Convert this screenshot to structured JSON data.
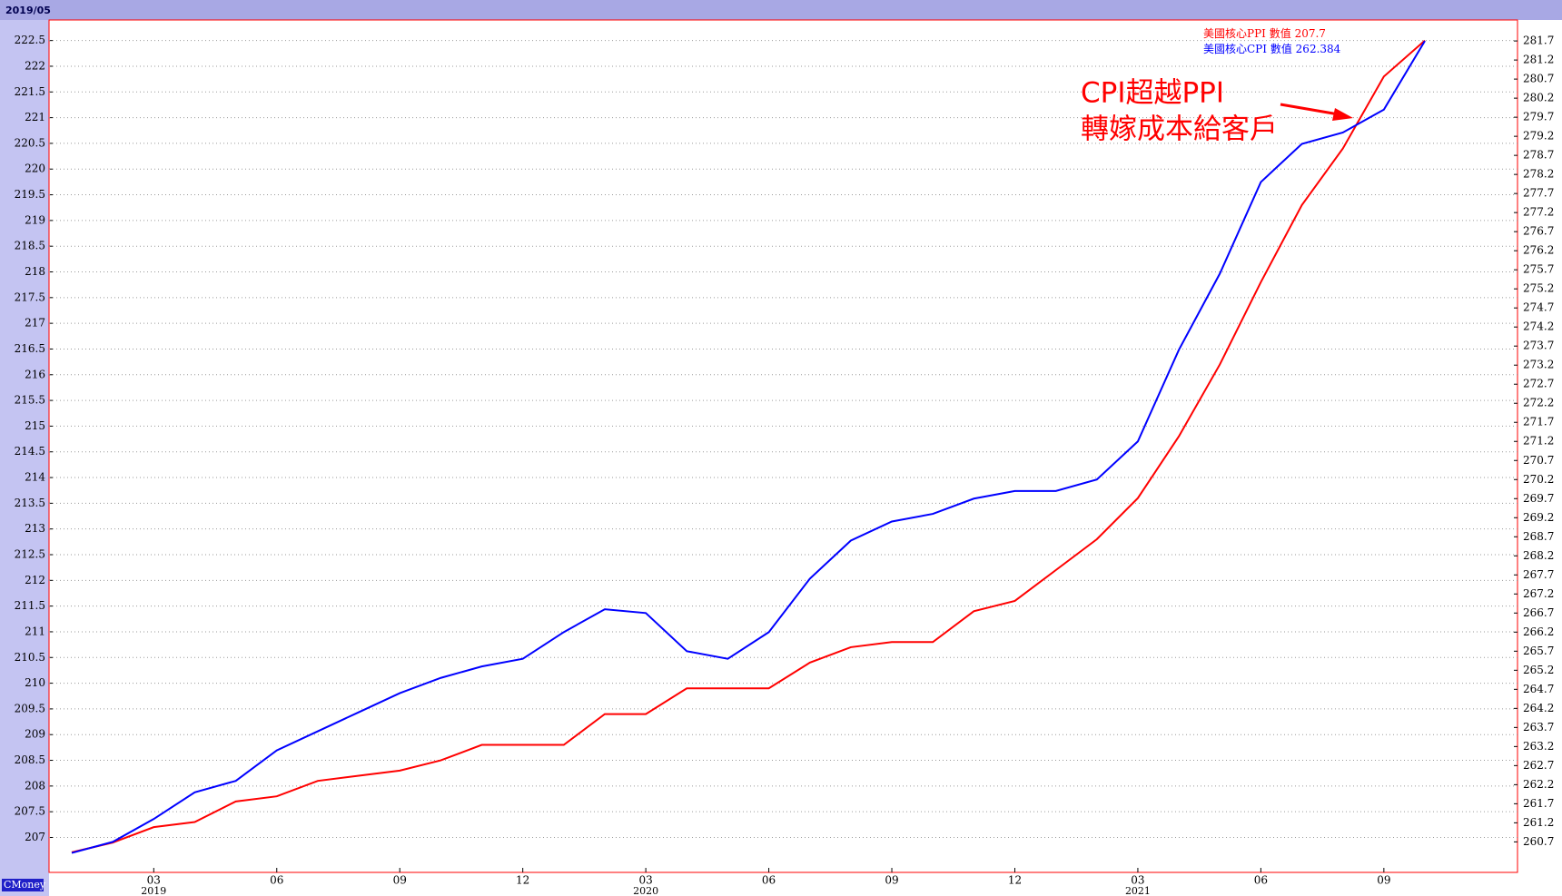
{
  "chart_data": {
    "type": "line",
    "header": "2019/05",
    "footer": "CMoney",
    "categories": [
      null,
      null,
      "03",
      null,
      null,
      "06",
      null,
      null,
      "09",
      null,
      null,
      "12",
      null,
      null,
      "03",
      null,
      null,
      "06",
      null,
      null,
      "09",
      null,
      null,
      "12",
      null,
      null,
      "03",
      null,
      null,
      "06",
      null,
      null,
      "09",
      null
    ],
    "year_labels": [
      null,
      null,
      "2019",
      null,
      null,
      null,
      null,
      null,
      null,
      null,
      null,
      null,
      null,
      null,
      "2020",
      null,
      null,
      null,
      null,
      null,
      null,
      null,
      null,
      null,
      null,
      null,
      "2021",
      null,
      null,
      null,
      null,
      null,
      null,
      null
    ],
    "series": [
      {
        "name": "美國核心PPI",
        "legend_label": "數值",
        "last_value": 207.7,
        "color": "#ff0000",
        "axis": "y",
        "values": [
          206.71,
          206.9,
          207.2,
          207.3,
          207.7,
          207.8,
          208.1,
          208.2,
          208.3,
          208.5,
          208.8,
          208.8,
          208.8,
          209.4,
          209.4,
          209.9,
          209.9,
          209.9,
          210.4,
          210.7,
          210.8,
          210.8,
          211.4,
          211.6,
          212.2,
          212.8,
          213.6,
          214.8,
          216.2,
          217.8,
          219.3,
          220.4,
          221.8,
          222.5
        ]
      },
      {
        "name": "美國核心CPI",
        "legend_label": "數值",
        "last_value": 262.384,
        "color": "#0000ff",
        "axis": "y2",
        "values": [
          260.41,
          260.7,
          261.3,
          262.0,
          262.3,
          263.1,
          263.6,
          264.1,
          264.6,
          265.0,
          265.3,
          265.5,
          266.2,
          266.8,
          266.7,
          265.7,
          265.5,
          266.2,
          267.6,
          268.6,
          269.1,
          269.3,
          269.7,
          269.9,
          269.9,
          270.2,
          271.2,
          273.6,
          275.6,
          278.0,
          279.0,
          279.3,
          279.9,
          281.7
        ]
      }
    ],
    "ylim": [
      206.32,
      222.9
    ],
    "yticks": [
      207,
      207.5,
      208,
      208.5,
      209,
      209.5,
      210,
      210.5,
      211,
      211.5,
      212,
      212.5,
      213,
      213.5,
      214,
      214.5,
      215,
      215.5,
      216,
      216.5,
      217,
      217.5,
      218,
      218.5,
      219,
      219.5,
      220,
      220.5,
      221,
      221.5,
      222,
      222.5
    ],
    "y2lim": [
      259.9,
      282.25
    ],
    "y2ticks": [
      260.7,
      261.2,
      261.7,
      262.2,
      262.7,
      263.2,
      263.7,
      264.2,
      264.7,
      265.2,
      265.7,
      266.2,
      266.7,
      267.2,
      267.7,
      268.2,
      268.7,
      269.2,
      269.7,
      270.2,
      270.7,
      271.2,
      271.7,
      272.2,
      272.7,
      273.2,
      273.7,
      274.2,
      274.7,
      275.2,
      275.7,
      276.2,
      276.7,
      277.2,
      277.7,
      278.2,
      278.7,
      279.2,
      279.7,
      280.2,
      280.7,
      281.2,
      281.7
    ],
    "grid": true,
    "legend": "upper right",
    "annotation": {
      "lines": [
        "CPI超越PPI",
        "轉嫁成本給客戶"
      ],
      "color": "#ff0000"
    }
  }
}
